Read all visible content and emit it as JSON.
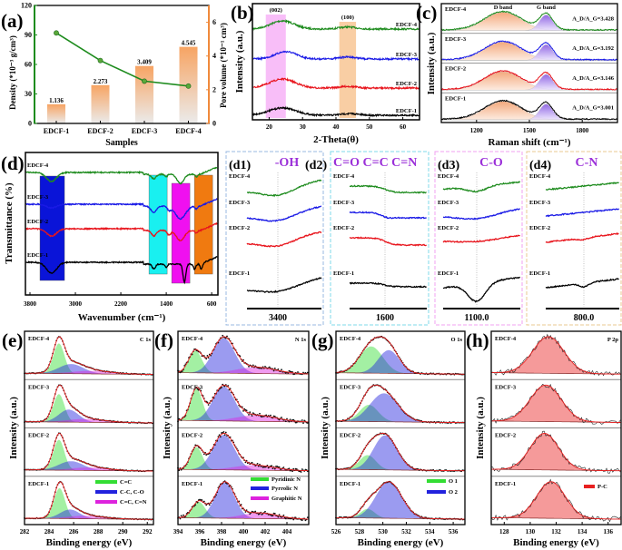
{
  "colors": {
    "EDCF-1": "#000000",
    "EDCF-2": "#e8141c",
    "EDCF-3": "#1a1ae6",
    "EDCF-4": "#1f8c1f",
    "density": "#1e8c1e",
    "pore_volume": "#f08a3c",
    "band_label": "#3b3bd6",
    "inset_title": "#9b30d9",
    "fit_line": "#e82020"
  },
  "chart_data": [
    {
      "panel": "(a)",
      "type": "bar+line",
      "categories": [
        "EDCF-1",
        "EDCF-2",
        "EDCF-3",
        "EDCF-4"
      ],
      "xlabel": "Samples",
      "ylabel_left": "Density (*10⁻³ g/cm³)",
      "ylim_left": [
        0,
        120
      ],
      "yticks_left": [
        "0",
        "30",
        "60",
        "90",
        "120"
      ],
      "ylabel_right": "Pore volume (*10⁻¹ cm³)",
      "ylim_right": [
        0,
        7
      ],
      "yticks_right": [
        "0",
        "2",
        "4",
        "6"
      ],
      "line_values": [
        92,
        64,
        43,
        38
      ],
      "bar_values": [
        1.136,
        2.273,
        3.409,
        4.545
      ],
      "bar_labels": [
        "1.136",
        "2.273",
        "3.409",
        "4.545"
      ]
    },
    {
      "panel": "(b)",
      "type": "line",
      "xlabel": "2-Theta(θ)",
      "ylabel": "Intensity (a.u.)",
      "xlim": [
        15,
        65
      ],
      "xticks": [
        "20",
        "30",
        "40",
        "50",
        "60"
      ],
      "bands": [
        {
          "label": "(002)",
          "range": [
            19,
            25
          ],
          "color": "#f5a8f5"
        },
        {
          "label": "(100)",
          "range": [
            41,
            46
          ],
          "color": "#f7bd86"
        }
      ],
      "series": [
        {
          "name": "EDCF-4",
          "peaks": [
            [
              24,
              3.5,
              1.0
            ],
            [
              43.5,
              2.5,
              0.25
            ]
          ]
        },
        {
          "name": "EDCF-3",
          "peaks": [
            [
              25,
              3.2,
              0.9
            ],
            [
              43.5,
              2.5,
              0.25
            ]
          ]
        },
        {
          "name": "EDCF-2",
          "peaks": [
            [
              24,
              3.8,
              1.1
            ],
            [
              43.5,
              2.5,
              0.2
            ]
          ]
        },
        {
          "name": "EDCF-1",
          "peaks": [
            [
              24,
              4.0,
              0.9
            ],
            [
              44,
              2.5,
              0.2
            ]
          ]
        }
      ]
    },
    {
      "panel": "(c)",
      "type": "line",
      "xlabel": "Raman shift (cm⁻¹)",
      "ylabel": "Intensity (a.u.)",
      "xlim": [
        1000,
        2000
      ],
      "xticks": [
        "1200",
        "1500",
        "1800"
      ],
      "band_labels": [
        {
          "label": "D band",
          "center": 1350
        },
        {
          "label": "G band",
          "center": 1595
        }
      ],
      "ratio_prefix": "A_D/A_G=",
      "series": [
        {
          "name": "EDCF-4",
          "ratio": "3.428"
        },
        {
          "name": "EDCF-3",
          "ratio": "3.192"
        },
        {
          "name": "EDCF-2",
          "ratio": "3.146"
        },
        {
          "name": "EDCF-1",
          "ratio": "3.001"
        }
      ]
    },
    {
      "panel": "(d)",
      "type": "line",
      "xlabel": "Wavenumber (cm⁻¹)",
      "ylabel": "Transmittance (%)",
      "xlim": [
        3880,
        490
      ],
      "xticks": [
        "3800",
        "3000",
        "2200",
        "1400",
        "600"
      ],
      "bands": [
        {
          "range": [
            3624,
            3192
          ],
          "color": "#0a14d8"
        },
        {
          "range": [
            1704,
            1384
          ],
          "color": "#19f0f0"
        },
        {
          "range": [
            1304,
            984
          ],
          "color": "#f010f0"
        },
        {
          "range": [
            904,
            584
          ],
          "color": "#f07a10"
        }
      ],
      "series": [
        {
          "name": "EDCF-4"
        },
        {
          "name": "EDCF-3"
        },
        {
          "name": "EDCF-2"
        },
        {
          "name": "EDCF-1"
        }
      ],
      "insets": [
        {
          "panel": "(d1)",
          "title": "-OH",
          "tick": "3400",
          "border": "#9ab8e0"
        },
        {
          "panel": "(d2)",
          "title": "C=O C=C C=N",
          "tick": "1600",
          "border": "#7fd8ea"
        },
        {
          "panel": "(d3)",
          "title": "C-O",
          "tick": "1100.0",
          "border": "#f0a0f0"
        },
        {
          "panel": "(d4)",
          "title": "C-N",
          "tick": "800.0",
          "border": "#e8c890"
        }
      ]
    },
    {
      "panel": "(e)",
      "type": "line",
      "core_level": "C 1s",
      "xlabel": "Binding energy (eV)",
      "ylabel": "Intensity (a.u.)",
      "xlim": [
        282,
        292.5
      ],
      "xticks": [
        "282",
        "284",
        "286",
        "288",
        "290",
        "292"
      ],
      "components": [
        {
          "name": "C=C",
          "color": "#33dd33"
        },
        {
          "name": "C-C, C-O",
          "color": "#2222dd"
        },
        {
          "name": "C=C, C=N",
          "color": "#dd22dd"
        }
      ],
      "series": [
        {
          "name": "EDCF-4",
          "peaks": [
            [
              284.8,
              0.45,
              1.0
            ],
            [
              285.8,
              1.0,
              0.32
            ],
            [
              287.5,
              1.6,
              0.1
            ]
          ]
        },
        {
          "name": "EDCF-3",
          "peaks": [
            [
              284.8,
              0.45,
              1.0
            ],
            [
              285.6,
              0.8,
              0.45
            ],
            [
              287.0,
              1.5,
              0.12
            ]
          ]
        },
        {
          "name": "EDCF-2",
          "peaks": [
            [
              284.8,
              0.45,
              1.0
            ],
            [
              285.8,
              1.0,
              0.3
            ],
            [
              287.3,
              1.5,
              0.1
            ]
          ]
        },
        {
          "name": "EDCF-1",
          "peaks": [
            [
              284.85,
              0.45,
              1.0
            ],
            [
              285.7,
              0.8,
              0.3
            ],
            [
              287.0,
              1.5,
              0.1
            ]
          ]
        }
      ]
    },
    {
      "panel": "(f)",
      "type": "line",
      "core_level": "N 1s",
      "xlabel": "Binding energy (eV)",
      "ylabel": "Intensity (a.u.)",
      "xlim": [
        394,
        406
      ],
      "xticks": [
        "394",
        "396",
        "398",
        "400",
        "402",
        "404"
      ],
      "components": [
        {
          "name": "Pyridinic N",
          "color": "#33dd33"
        },
        {
          "name": "Pyrrolic N",
          "color": "#2222dd"
        },
        {
          "name": "Graphitic N",
          "color": "#dd22dd"
        }
      ],
      "series": [
        {
          "name": "EDCF-4",
          "peaks": [
            [
              395.6,
              0.6,
              0.6
            ],
            [
              398.2,
              1.0,
              0.95
            ],
            [
              401.2,
              1.8,
              0.17
            ]
          ]
        },
        {
          "name": "EDCF-3",
          "peaks": [
            [
              395.7,
              0.55,
              0.72
            ],
            [
              398.2,
              1.0,
              0.78
            ],
            [
              401.2,
              1.8,
              0.14
            ]
          ]
        },
        {
          "name": "EDCF-2",
          "peaks": [
            [
              395.7,
              0.55,
              0.62
            ],
            [
              398.2,
              1.0,
              0.97
            ],
            [
              401.0,
              1.8,
              0.14
            ]
          ]
        },
        {
          "name": "EDCF-1",
          "peaks": [
            [
              395.9,
              0.6,
              0.45
            ],
            [
              398.3,
              0.9,
              1.0
            ],
            [
              401.5,
              1.6,
              0.16
            ]
          ]
        }
      ]
    },
    {
      "panel": "(g)",
      "type": "line",
      "core_level": "O 1s",
      "xlabel": "Binding energy (eV)",
      "ylabel": "Intensity (a.u.)",
      "xlim": [
        526,
        537
      ],
      "xticks": [
        "526",
        "528",
        "530",
        "532",
        "534",
        "536"
      ],
      "components": [
        {
          "name": "O 1",
          "color": "#33dd33"
        },
        {
          "name": "O 2",
          "color": "#2222dd"
        }
      ],
      "series": [
        {
          "name": "EDCF-4",
          "peaks": [
            [
              529.0,
              1.0,
              0.75
            ],
            [
              530.5,
              0.9,
              0.65
            ]
          ]
        },
        {
          "name": "EDCF-3",
          "peaks": [
            [
              528.8,
              0.8,
              0.5
            ],
            [
              530.1,
              1.2,
              0.85
            ]
          ]
        },
        {
          "name": "EDCF-2",
          "peaks": [
            [
              528.7,
              0.7,
              0.4
            ],
            [
              530.2,
              1.0,
              0.95
            ]
          ]
        },
        {
          "name": "EDCF-1",
          "peaks": [
            [
              528.7,
              0.6,
              0.25
            ],
            [
              530.5,
              1.1,
              1.0
            ]
          ]
        }
      ]
    },
    {
      "panel": "(h)",
      "type": "line",
      "core_level": "P 2p",
      "xlabel": "Binding energy (eV)",
      "ylabel": "Intensity (a.u.)",
      "xlim": [
        127,
        137
      ],
      "xticks": [
        "128",
        "130",
        "132",
        "134",
        "136"
      ],
      "components": [
        {
          "name": "P-C",
          "color": "#e82020"
        }
      ],
      "series": [
        {
          "name": "EDCF-4",
          "peaks": [
            [
              131.4,
              1.2,
              1.0
            ]
          ]
        },
        {
          "name": "EDCF-3",
          "peaks": [
            [
              131.2,
              1.2,
              1.0
            ]
          ]
        },
        {
          "name": "EDCF-2",
          "peaks": [
            [
              131.1,
              1.1,
              1.0
            ]
          ]
        },
        {
          "name": "EDCF-1",
          "peaks": [
            [
              131.6,
              1.1,
              1.0
            ]
          ]
        }
      ]
    }
  ]
}
